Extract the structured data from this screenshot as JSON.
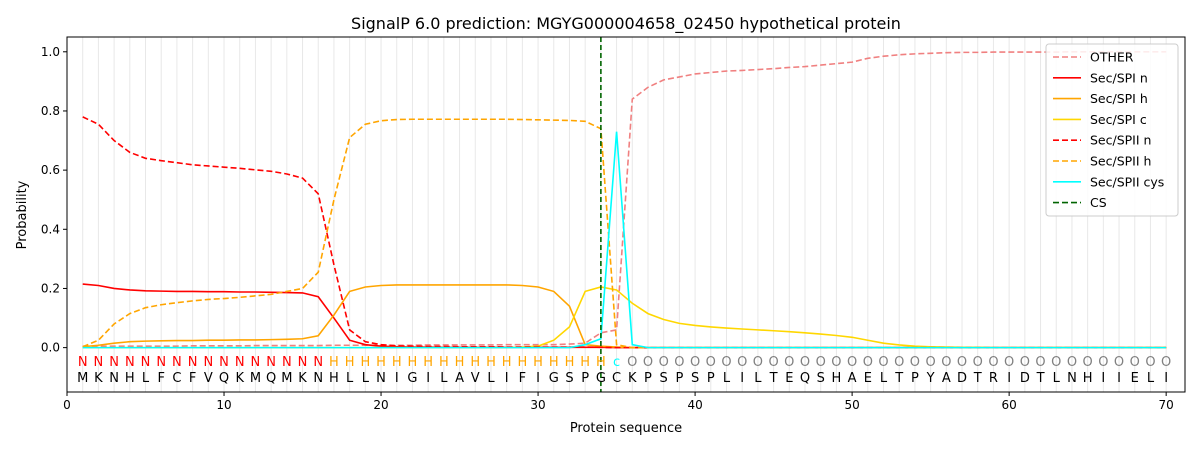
{
  "chart_data": {
    "type": "line",
    "title": "SignalP 6.0 prediction: MGYG000004658_02450 hypothetical protein",
    "xlabel": "Protein sequence",
    "ylabel": "Probability",
    "xlim": [
      0,
      71.2
    ],
    "ylim": [
      -0.15,
      1.05
    ],
    "xticks": [
      0,
      10,
      20,
      30,
      40,
      50,
      60,
      70
    ],
    "yticks": [
      0.0,
      0.2,
      0.4,
      0.6,
      0.8,
      1.0
    ],
    "sequence": "MKNHLFCFVQKMQMKNHLLNIGILAVLIFIGSPGCKPSPSPLILTEQSHAELTPYADTRIDTLNHIIELI",
    "labels": "NNNNNNNNNNNNNNNNHHHHHHHHHHHHHHHHHHcOOOOOOOOOOOOOOOOOOOOOOOOOOOOOOOOOOO",
    "label_colors": {
      "N": "#ff0000",
      "H": "#ffa500",
      "c": "#00ffff",
      "O": "#808080"
    },
    "cs_position": 34,
    "legend_position": "top-right",
    "series": [
      {
        "name": "OTHER",
        "color": "#f08080",
        "dash": true,
        "values": [
          0.005,
          0.005,
          0.005,
          0.005,
          0.005,
          0.005,
          0.005,
          0.006,
          0.006,
          0.006,
          0.006,
          0.007,
          0.007,
          0.007,
          0.007,
          0.007,
          0.008,
          0.008,
          0.008,
          0.008,
          0.008,
          0.008,
          0.009,
          0.009,
          0.009,
          0.009,
          0.009,
          0.01,
          0.01,
          0.01,
          0.01,
          0.012,
          0.015,
          0.05,
          0.06,
          0.84,
          0.88,
          0.905,
          0.915,
          0.925,
          0.93,
          0.935,
          0.937,
          0.94,
          0.943,
          0.947,
          0.95,
          0.955,
          0.96,
          0.965,
          0.978,
          0.985,
          0.99,
          0.993,
          0.995,
          0.997,
          0.998,
          0.998,
          0.999,
          0.999,
          0.999,
          0.999,
          0.999,
          1.0,
          1.0,
          1.0,
          1.0,
          1.0,
          1.0,
          1.0
        ]
      },
      {
        "name": "Sec/SPI n",
        "color": "#ff0000",
        "dash": false,
        "values": [
          0.215,
          0.21,
          0.2,
          0.195,
          0.192,
          0.191,
          0.19,
          0.19,
          0.189,
          0.189,
          0.188,
          0.188,
          0.187,
          0.186,
          0.185,
          0.172,
          0.1,
          0.025,
          0.01,
          0.005,
          0.003,
          0.002,
          0.002,
          0.001,
          0.001,
          0.001,
          0.001,
          0.001,
          0.001,
          0.001,
          0.001,
          0.001,
          0.001,
          0.001,
          0,
          0,
          0,
          0,
          0,
          0,
          0,
          0,
          0,
          0,
          0,
          0,
          0,
          0,
          0,
          0,
          0,
          0,
          0,
          0,
          0,
          0,
          0,
          0,
          0,
          0,
          0,
          0,
          0,
          0,
          0,
          0,
          0,
          0,
          0,
          0
        ]
      },
      {
        "name": "Sec/SPI h",
        "color": "#ffa500",
        "dash": false,
        "values": [
          0.003,
          0.008,
          0.015,
          0.02,
          0.022,
          0.023,
          0.024,
          0.024,
          0.025,
          0.025,
          0.026,
          0.026,
          0.027,
          0.028,
          0.03,
          0.04,
          0.11,
          0.19,
          0.205,
          0.21,
          0.212,
          0.212,
          0.212,
          0.212,
          0.212,
          0.212,
          0.212,
          0.212,
          0.21,
          0.205,
          0.19,
          0.14,
          0.01,
          0.005,
          0.002,
          0,
          0,
          0,
          0,
          0,
          0,
          0,
          0,
          0,
          0,
          0,
          0,
          0,
          0,
          0,
          0,
          0,
          0,
          0,
          0,
          0,
          0,
          0,
          0,
          0,
          0,
          0,
          0,
          0,
          0,
          0,
          0,
          0,
          0,
          0
        ]
      },
      {
        "name": "Sec/SPI c",
        "color": "#ffd700",
        "dash": false,
        "values": [
          0,
          0,
          0,
          0,
          0,
          0,
          0,
          0,
          0,
          0,
          0,
          0,
          0,
          0,
          0,
          0,
          0,
          0,
          0,
          0,
          0,
          0,
          0,
          0,
          0,
          0,
          0,
          0,
          0.002,
          0.005,
          0.025,
          0.07,
          0.19,
          0.205,
          0.195,
          0.15,
          0.115,
          0.095,
          0.082,
          0.075,
          0.07,
          0.066,
          0.063,
          0.06,
          0.057,
          0.054,
          0.05,
          0.046,
          0.041,
          0.035,
          0.025,
          0.015,
          0.009,
          0.005,
          0.003,
          0.002,
          0.001,
          0.001,
          0,
          0,
          0,
          0,
          0,
          0,
          0,
          0,
          0,
          0,
          0,
          0
        ]
      },
      {
        "name": "Sec/SPII n",
        "color": "#ff0000",
        "dash": true,
        "values": [
          0.78,
          0.755,
          0.7,
          0.66,
          0.64,
          0.632,
          0.625,
          0.618,
          0.614,
          0.61,
          0.606,
          0.601,
          0.596,
          0.587,
          0.573,
          0.52,
          0.28,
          0.06,
          0.02,
          0.01,
          0.006,
          0.005,
          0.004,
          0.004,
          0.003,
          0.003,
          0.003,
          0.002,
          0.002,
          0.002,
          0.002,
          0.002,
          0.002,
          0.001,
          0,
          0,
          0,
          0,
          0,
          0,
          0,
          0,
          0,
          0,
          0,
          0,
          0,
          0,
          0,
          0,
          0,
          0,
          0,
          0,
          0,
          0,
          0,
          0,
          0,
          0,
          0,
          0,
          0,
          0,
          0,
          0,
          0,
          0,
          0,
          0
        ]
      },
      {
        "name": "Sec/SPII h",
        "color": "#ffa500",
        "dash": true,
        "values": [
          0.003,
          0.025,
          0.08,
          0.115,
          0.135,
          0.145,
          0.152,
          0.158,
          0.163,
          0.166,
          0.17,
          0.175,
          0.18,
          0.19,
          0.2,
          0.255,
          0.5,
          0.71,
          0.755,
          0.767,
          0.771,
          0.772,
          0.772,
          0.772,
          0.772,
          0.772,
          0.772,
          0.772,
          0.771,
          0.77,
          0.769,
          0.768,
          0.765,
          0.74,
          0.01,
          0,
          0,
          0,
          0,
          0,
          0,
          0,
          0,
          0,
          0,
          0,
          0,
          0,
          0,
          0,
          0,
          0,
          0,
          0,
          0,
          0,
          0,
          0,
          0,
          0,
          0,
          0,
          0,
          0,
          0,
          0,
          0,
          0,
          0,
          0
        ]
      },
      {
        "name": "Sec/SPII cys",
        "color": "#00ffff",
        "dash": false,
        "values": [
          0,
          0,
          0,
          0,
          0,
          0,
          0,
          0,
          0,
          0,
          0,
          0,
          0,
          0,
          0,
          0,
          0,
          0,
          0,
          0,
          0,
          0,
          0,
          0,
          0,
          0,
          0,
          0,
          0,
          0,
          0,
          0,
          0.01,
          0.03,
          0.73,
          0.01,
          0,
          0,
          0,
          0,
          0,
          0,
          0,
          0,
          0,
          0,
          0,
          0,
          0,
          0,
          0,
          0,
          0,
          0,
          0,
          0,
          0,
          0,
          0,
          0,
          0,
          0,
          0,
          0,
          0,
          0,
          0,
          0,
          0,
          0
        ]
      }
    ],
    "cs_legend": {
      "name": "CS",
      "color": "#006400"
    }
  }
}
